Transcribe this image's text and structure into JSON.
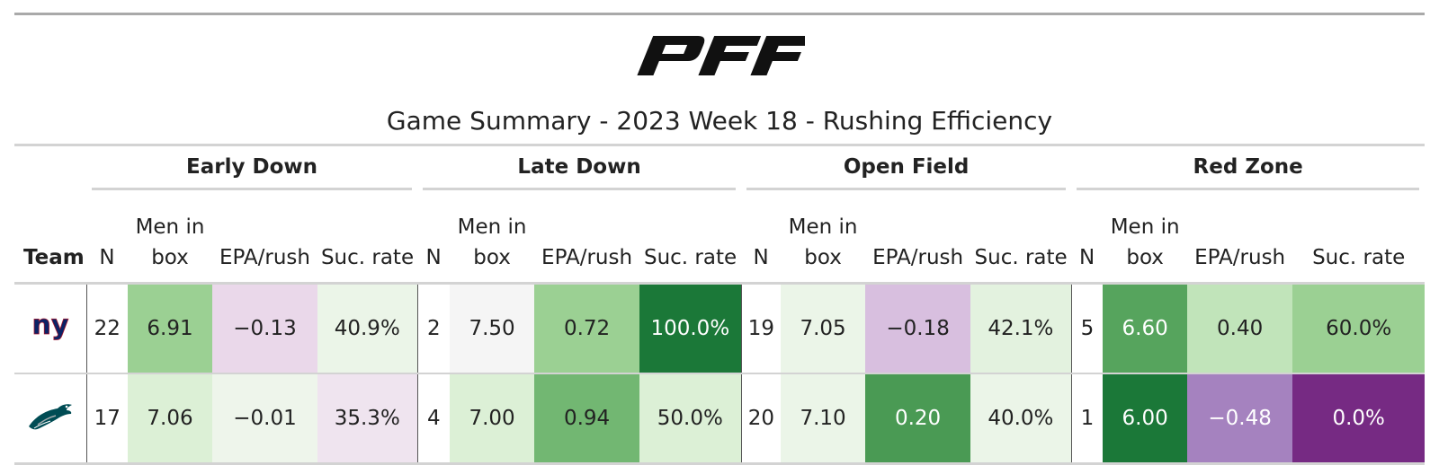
{
  "header": {
    "logo_text": "PFF",
    "title": "Game Summary - 2023 Week 18 - Rushing Efficiency"
  },
  "table": {
    "team_label": "Team",
    "groups": [
      "Early Down",
      "Late Down",
      "Open Field",
      "Red Zone"
    ],
    "columns": {
      "n": "N",
      "men_line1": "Men in",
      "men_line2": "box",
      "epa": "EPA/rush",
      "suc": "Suc. rate"
    },
    "rows": [
      {
        "team_icon": "ny-logo-icon",
        "team_text": "ny",
        "early": {
          "n": "22",
          "men": "6.91",
          "epa": "−0.13",
          "suc": "40.9%"
        },
        "late": {
          "n": "2",
          "men": "7.50",
          "epa": "0.72",
          "suc": "100.0%"
        },
        "open": {
          "n": "19",
          "men": "7.05",
          "epa": "−0.18",
          "suc": "42.1%"
        },
        "red": {
          "n": "5",
          "men": "6.60",
          "epa": "0.40",
          "suc": "60.0%"
        }
      },
      {
        "team_icon": "eagle-logo-icon",
        "early": {
          "n": "17",
          "men": "7.06",
          "epa": "−0.01",
          "suc": "35.3%"
        },
        "late": {
          "n": "4",
          "men": "7.00",
          "epa": "0.94",
          "suc": "50.0%"
        },
        "open": {
          "n": "20",
          "men": "7.10",
          "epa": "0.20",
          "suc": "40.0%"
        },
        "red": {
          "n": "1",
          "men": "6.00",
          "epa": "−0.48",
          "suc": "0.0%"
        }
      }
    ]
  },
  "colors": {
    "logo": "#111111",
    "ny_blue": "#0b2265",
    "ny_red": "#a71930",
    "eagle_green": "#004c54",
    "r1": {
      "early_men": "#9bd093",
      "early_epa": "#ead8ea",
      "early_suc": "#ebf5e8",
      "late_men": "#f5f5f5",
      "late_epa": "#9bd093",
      "late_suc": "#1b7838",
      "open_men": "#ebf5e8",
      "open_epa": "#d8bfdf",
      "open_suc": "#e3f2df",
      "red_men": "#56a45d",
      "red_epa": "#c1e4ba",
      "red_suc": "#9bd093"
    },
    "r2": {
      "early_men": "#dcf0d6",
      "early_epa": "#eef5eb",
      "early_suc": "#efe4ef",
      "late_men": "#dcf0d6",
      "late_epa": "#72b772",
      "late_suc": "#dcf0d6",
      "open_men": "#ebf5e8",
      "open_epa": "#4a9a54",
      "open_suc": "#ebf5e8",
      "red_men": "#1b7838",
      "red_epa": "#a582bf",
      "red_suc": "#762a83"
    }
  }
}
